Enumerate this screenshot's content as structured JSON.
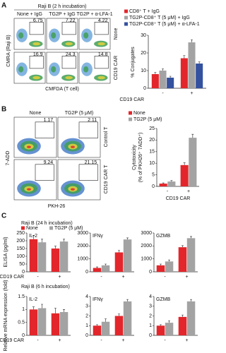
{
  "panel_a": {
    "label": "A",
    "header": "Raji B (2 h incubation)",
    "columns": [
      "None + IgG",
      "TG2P + IgG",
      "TG2P + α-LFA-1"
    ],
    "rows": [
      "None",
      "CD19 CAR"
    ],
    "y_axis": "CMRA (Raji B)",
    "x_axis": "CMFDA (T cell)",
    "gates": [
      [
        6.75,
        7.22,
        4.22
      ],
      [
        16.9,
        24.3,
        14.8
      ]
    ],
    "legend": [
      {
        "name": "CD8⁺ T + IgG",
        "color": "#e3262b"
      },
      {
        "name": "TG2P-CD8⁺ T (5 μM) + IgG",
        "color": "#a3a3a3"
      },
      {
        "name": "TG2P-CD8⁺ T (5 μM) + α-LFA-1",
        "color": "#34519f"
      }
    ],
    "chart": {
      "type": "bar",
      "ylabel": "% Conjugates",
      "group_label": "CD19 CAR",
      "categories": [
        "-",
        "+"
      ],
      "series": [
        {
          "values": [
            8,
            17
          ],
          "errors": [
            1,
            1.5
          ]
        },
        {
          "values": [
            10,
            26
          ],
          "errors": [
            1,
            1.5
          ]
        },
        {
          "values": [
            6,
            14
          ],
          "errors": [
            0.8,
            1
          ]
        }
      ],
      "ylim": [
        0,
        30
      ],
      "yticks": [
        0,
        10,
        20,
        30
      ]
    }
  },
  "panel_b": {
    "label": "B",
    "columns": [
      "None",
      "TG2P (5 μM)"
    ],
    "rows": [
      "Control T",
      "CD19 CAR T"
    ],
    "y_axis": "7-ADD",
    "x_axis": "PKH-26",
    "gates": [
      [
        1.17,
        2.11
      ],
      [
        9.24,
        21.15
      ]
    ],
    "legend": [
      {
        "name": "None",
        "color": "#e3262b"
      },
      {
        "name": "TG2P (5 μM)",
        "color": "#a3a3a3"
      }
    ],
    "chart": {
      "type": "bar",
      "ylabel": [
        "Cytotoxicity",
        "(% of PKH26⁺ 7ADD⁺)"
      ],
      "group_label": "CD19 CAR",
      "categories": [
        "-",
        "+"
      ],
      "series": [
        {
          "values": [
            1.2,
            9.2
          ],
          "errors": [
            0.3,
            1
          ]
        },
        {
          "values": [
            2.1,
            21
          ],
          "errors": [
            0.4,
            1.5
          ]
        }
      ],
      "ylim": [
        0,
        25
      ],
      "yticks": [
        0,
        5,
        10,
        15,
        20,
        25
      ]
    }
  },
  "panel_c": {
    "label": "C",
    "legend": [
      {
        "name": "None",
        "color": "#e3262b"
      },
      {
        "name": "TG2P (5 μM)",
        "color": "#a3a3a3"
      }
    ],
    "rows": [
      {
        "header": "Raji B (24 h incubation)",
        "ylabel": "ELISA (pg/ml)",
        "group_label": "CD19 CAR",
        "charts": [
          {
            "type": "bar",
            "title": "IL-2",
            "categories": [
              "-",
              "+"
            ],
            "series": [
              {
                "values": [
                  210,
                  150
                ],
                "errors": [
                  25,
                  15
                ]
              },
              {
                "values": [
                  190,
                  195
                ],
                "errors": [
                  20,
                  15
                ]
              }
            ],
            "ylim": [
              0,
              250
            ],
            "yticks": [
              0,
              50,
              100,
              150,
              200,
              250
            ]
          },
          {
            "type": "bar",
            "title": "IFNγ",
            "categories": [
              "-",
              "+"
            ],
            "series": [
              {
                "values": [
                  300,
                  1500
                ],
                "errors": [
                  80,
                  150
                ]
              },
              {
                "values": [
                  500,
                  2500
                ],
                "errors": [
                  100,
                  120
                ]
              }
            ],
            "ylim": [
              0,
              3000
            ],
            "yticks": [
              0,
              1000,
              2000,
              3000
            ]
          },
          {
            "type": "bar",
            "title": "GZMB",
            "categories": [
              "-",
              "+"
            ],
            "series": [
              {
                "values": [
                  500,
                  1900
                ],
                "errors": [
                  100,
                  120
                ]
              },
              {
                "values": [
                  800,
                  2600
                ],
                "errors": [
                  120,
                  130
                ]
              }
            ],
            "ylim": [
              0,
              3000
            ],
            "yticks": [
              0,
              1000,
              2000,
              3000
            ]
          }
        ]
      },
      {
        "header": "Raji B (6 h incubation)",
        "ylabel": "Relative mRNA expression (fold)",
        "group_label": "CD19 CAR",
        "charts": [
          {
            "type": "bar",
            "title": "IL-2",
            "categories": [
              "-",
              "+"
            ],
            "series": [
              {
                "values": [
                  1,
                  0.85
                ],
                "errors": [
                  0.1,
                  0.2
                ]
              },
              {
                "values": [
                  1.05,
                  0.9
                ],
                "errors": [
                  0.15,
                  0.1
                ]
              }
            ],
            "ylim": [
              0,
              1.5
            ],
            "yticks": [
              0,
              0.5,
              1,
              1.5
            ]
          },
          {
            "type": "bar",
            "title": "IFNγ",
            "categories": [
              "-",
              "+"
            ],
            "series": [
              {
                "values": [
                  1,
                  2
                ],
                "errors": [
                  0.1,
                  0.2
                ]
              },
              {
                "values": [
                  1.4,
                  3.5
                ],
                "errors": [
                  0.3,
                  0.2
                ]
              }
            ],
            "ylim": [
              0,
              4
            ],
            "yticks": [
              0,
              1,
              2,
              3,
              4
            ]
          },
          {
            "type": "bar",
            "title": "GZMB",
            "categories": [
              "-",
              "+"
            ],
            "series": [
              {
                "values": [
                  1,
                  1.9
                ],
                "errors": [
                  0.1,
                  0.2
                ]
              },
              {
                "values": [
                  1.3,
                  3.5
                ],
                "errors": [
                  0.2,
                  0.2
                ]
              }
            ],
            "ylim": [
              0,
              4
            ],
            "yticks": [
              0,
              1,
              2,
              3,
              4
            ]
          }
        ]
      }
    ]
  }
}
